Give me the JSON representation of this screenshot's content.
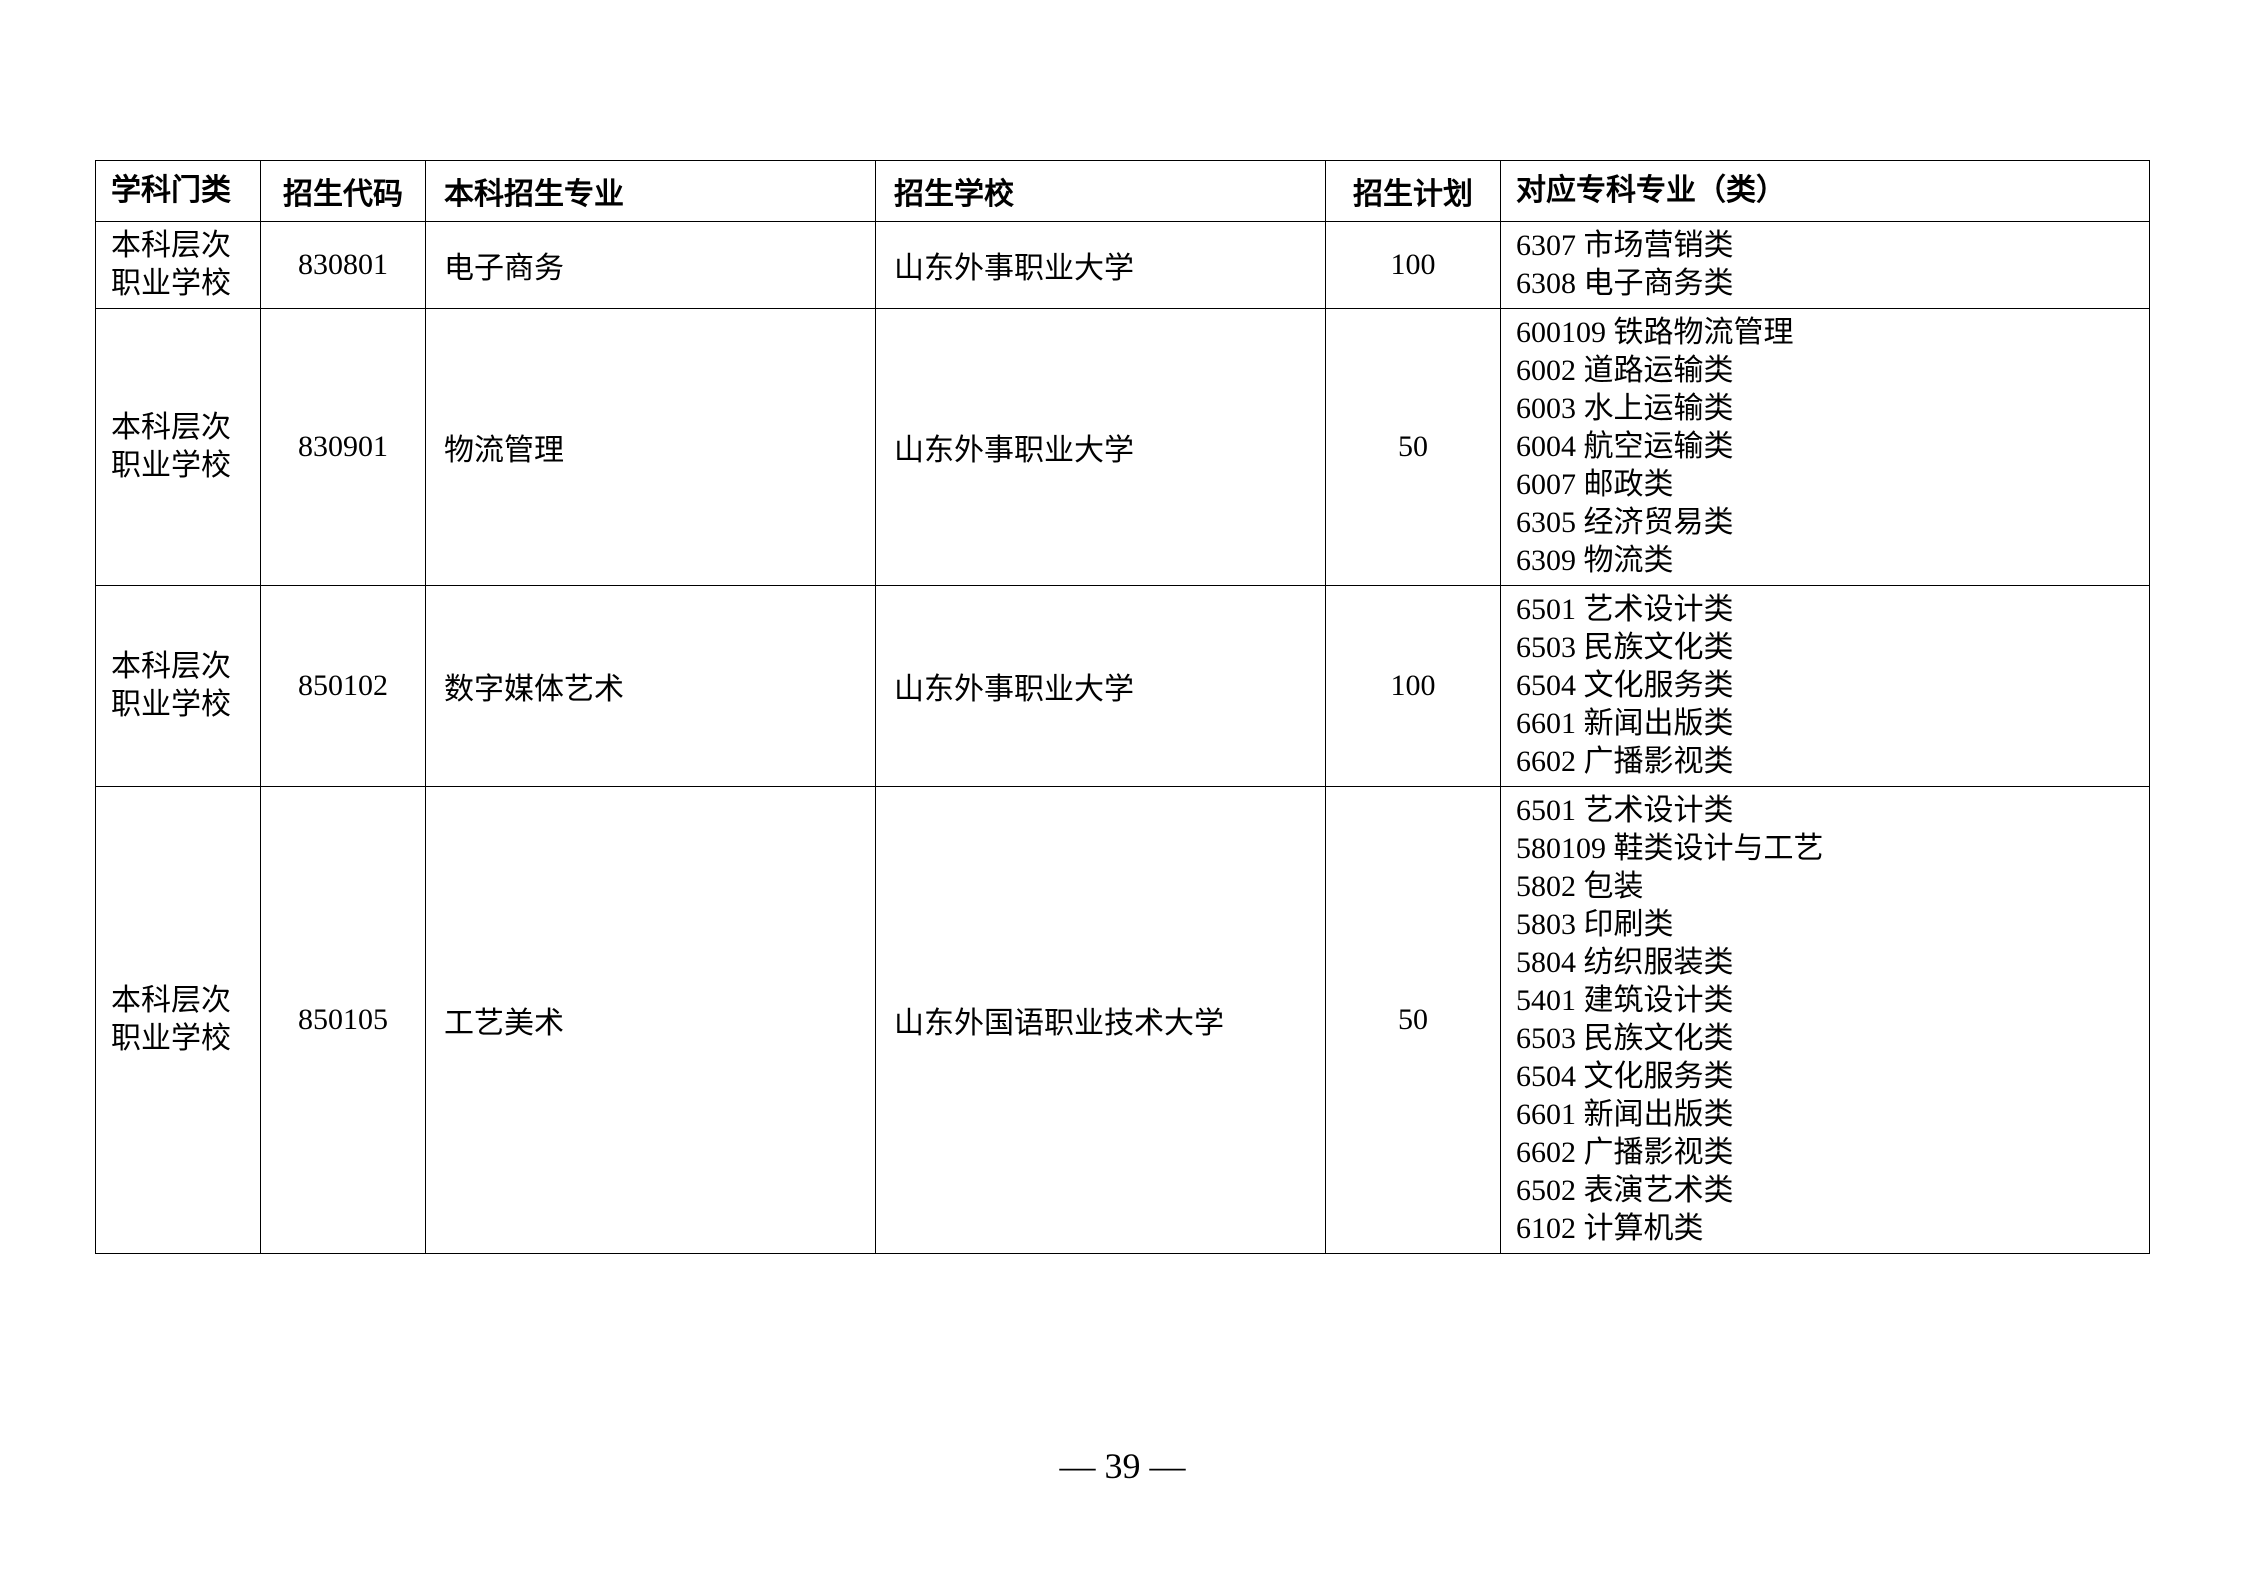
{
  "table": {
    "headers": {
      "category": "学科门类",
      "code": "招生代码",
      "major": "本科招生专业",
      "school": "招生学校",
      "plan": "招生计划",
      "corresponding": "对应专科专业（类）"
    },
    "rows": [
      {
        "category": "本科层次职业学校",
        "code": "830801",
        "major": "电子商务",
        "school": "山东外事职业大学",
        "plan": "100",
        "corresponding": "6307 市场营销类\n6308 电子商务类"
      },
      {
        "category": "本科层次职业学校",
        "code": "830901",
        "major": "物流管理",
        "school": "山东外事职业大学",
        "plan": "50",
        "corresponding": "600109 铁路物流管理\n6002 道路运输类\n6003 水上运输类\n6004 航空运输类\n6007 邮政类\n6305 经济贸易类\n6309 物流类"
      },
      {
        "category": "本科层次职业学校",
        "code": "850102",
        "major": "数字媒体艺术",
        "school": "山东外事职业大学",
        "plan": "100",
        "corresponding": "6501 艺术设计类\n6503 民族文化类\n6504 文化服务类\n6601 新闻出版类\n6602 广播影视类"
      },
      {
        "category": "本科层次职业学校",
        "code": "850105",
        "major": "工艺美术",
        "school": "山东外国语职业技术大学",
        "plan": "50",
        "corresponding": "6501 艺术设计类\n580109 鞋类设计与工艺\n5802 包装\n5803 印刷类\n5804 纺织服装类\n5401 建筑设计类\n6503 民族文化类\n6504 文化服务类\n6601 新闻出版类\n6602 广播影视类\n6502 表演艺术类\n6102 计算机类"
      }
    ]
  },
  "page_number": "— 39 —"
}
